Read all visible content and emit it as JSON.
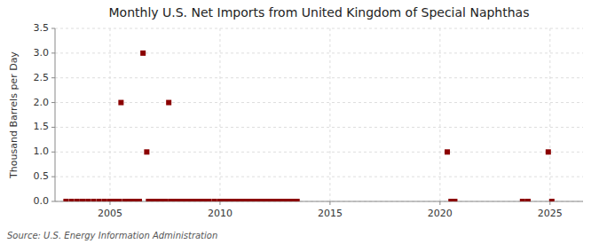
{
  "chart_data": {
    "type": "scatter",
    "title": "Monthly U.S. Net Imports from United Kingdom of Special Naphthas",
    "y_label": "Thousand Barrels per Day",
    "annotations": [
      "Source: U.S. Energy Information Administration"
    ],
    "color": "#8b0000",
    "marker": "square",
    "grid": true,
    "xlim": [
      2002.5,
      2026.5
    ],
    "xticks": [
      2005,
      2010,
      2015,
      2020,
      2025
    ],
    "ylim": [
      0.0,
      3.5
    ],
    "yticks": [
      {
        "value": 0.0,
        "label": "0.0"
      },
      0.5,
      {
        "value": 1.0,
        "label": "1.0"
      },
      1.5,
      {
        "value": 2.0,
        "label": "2.0"
      },
      2.5,
      {
        "value": 3.0,
        "label": "3.0"
      },
      3.5
    ],
    "x": [
      2003.0,
      2003.25,
      2003.5,
      2003.75,
      2004.0,
      2004.25,
      2004.5,
      2004.75,
      2005.0,
      2005.08,
      2005.17,
      2005.25,
      2005.33,
      2005.42,
      2005.5,
      2005.67,
      2005.75,
      2005.83,
      2005.92,
      2006.0,
      2006.08,
      2006.17,
      2006.33,
      2006.5,
      2006.67,
      2006.75,
      2006.83,
      2006.92,
      2007.0,
      2007.08,
      2007.17,
      2007.33,
      2007.5,
      2007.67,
      2007.75,
      2007.83,
      2007.92,
      2008.0,
      2008.08,
      2008.17,
      2008.33,
      2008.5,
      2008.67,
      2008.75,
      2008.83,
      2008.92,
      2009.0,
      2009.17,
      2009.25,
      2009.33,
      2009.5,
      2009.75,
      2010.0,
      2010.08,
      2010.17,
      2010.25,
      2010.33,
      2010.5,
      2010.58,
      2010.67,
      2010.75,
      2010.83,
      2010.92,
      2011.0,
      2011.08,
      2011.17,
      2011.25,
      2011.33,
      2011.5,
      2011.67,
      2011.75,
      2011.83,
      2011.92,
      2012.0,
      2012.08,
      2012.17,
      2012.25,
      2012.33,
      2012.5,
      2012.67,
      2012.75,
      2012.83,
      2012.92,
      2013.0,
      2013.08,
      2013.17,
      2013.25,
      2013.33,
      2013.5,
      2020.33,
      2020.5,
      2020.67,
      2023.75,
      2024.0,
      2024.92,
      2025.08
    ],
    "values": [
      0,
      0,
      0,
      0,
      0,
      0,
      0,
      0,
      0,
      0,
      0,
      0,
      0,
      0,
      2.0,
      0,
      0,
      0,
      0,
      0,
      0,
      0,
      0,
      3.0,
      1.0,
      0,
      0,
      0,
      0,
      0,
      0,
      0,
      0,
      2.0,
      0,
      0,
      0,
      0,
      0,
      0,
      0,
      0,
      0,
      0,
      0,
      0,
      0,
      0,
      0,
      0,
      0,
      0,
      0,
      0,
      0,
      0,
      0,
      0,
      0,
      0,
      0,
      0,
      0,
      0,
      0,
      0,
      0,
      0,
      0,
      0,
      0,
      0,
      0,
      0,
      0,
      0,
      0,
      0,
      0,
      0,
      0,
      0,
      0,
      0,
      0,
      0,
      0,
      0,
      0,
      1.0,
      0,
      0,
      0,
      0,
      1.0,
      0
    ]
  }
}
